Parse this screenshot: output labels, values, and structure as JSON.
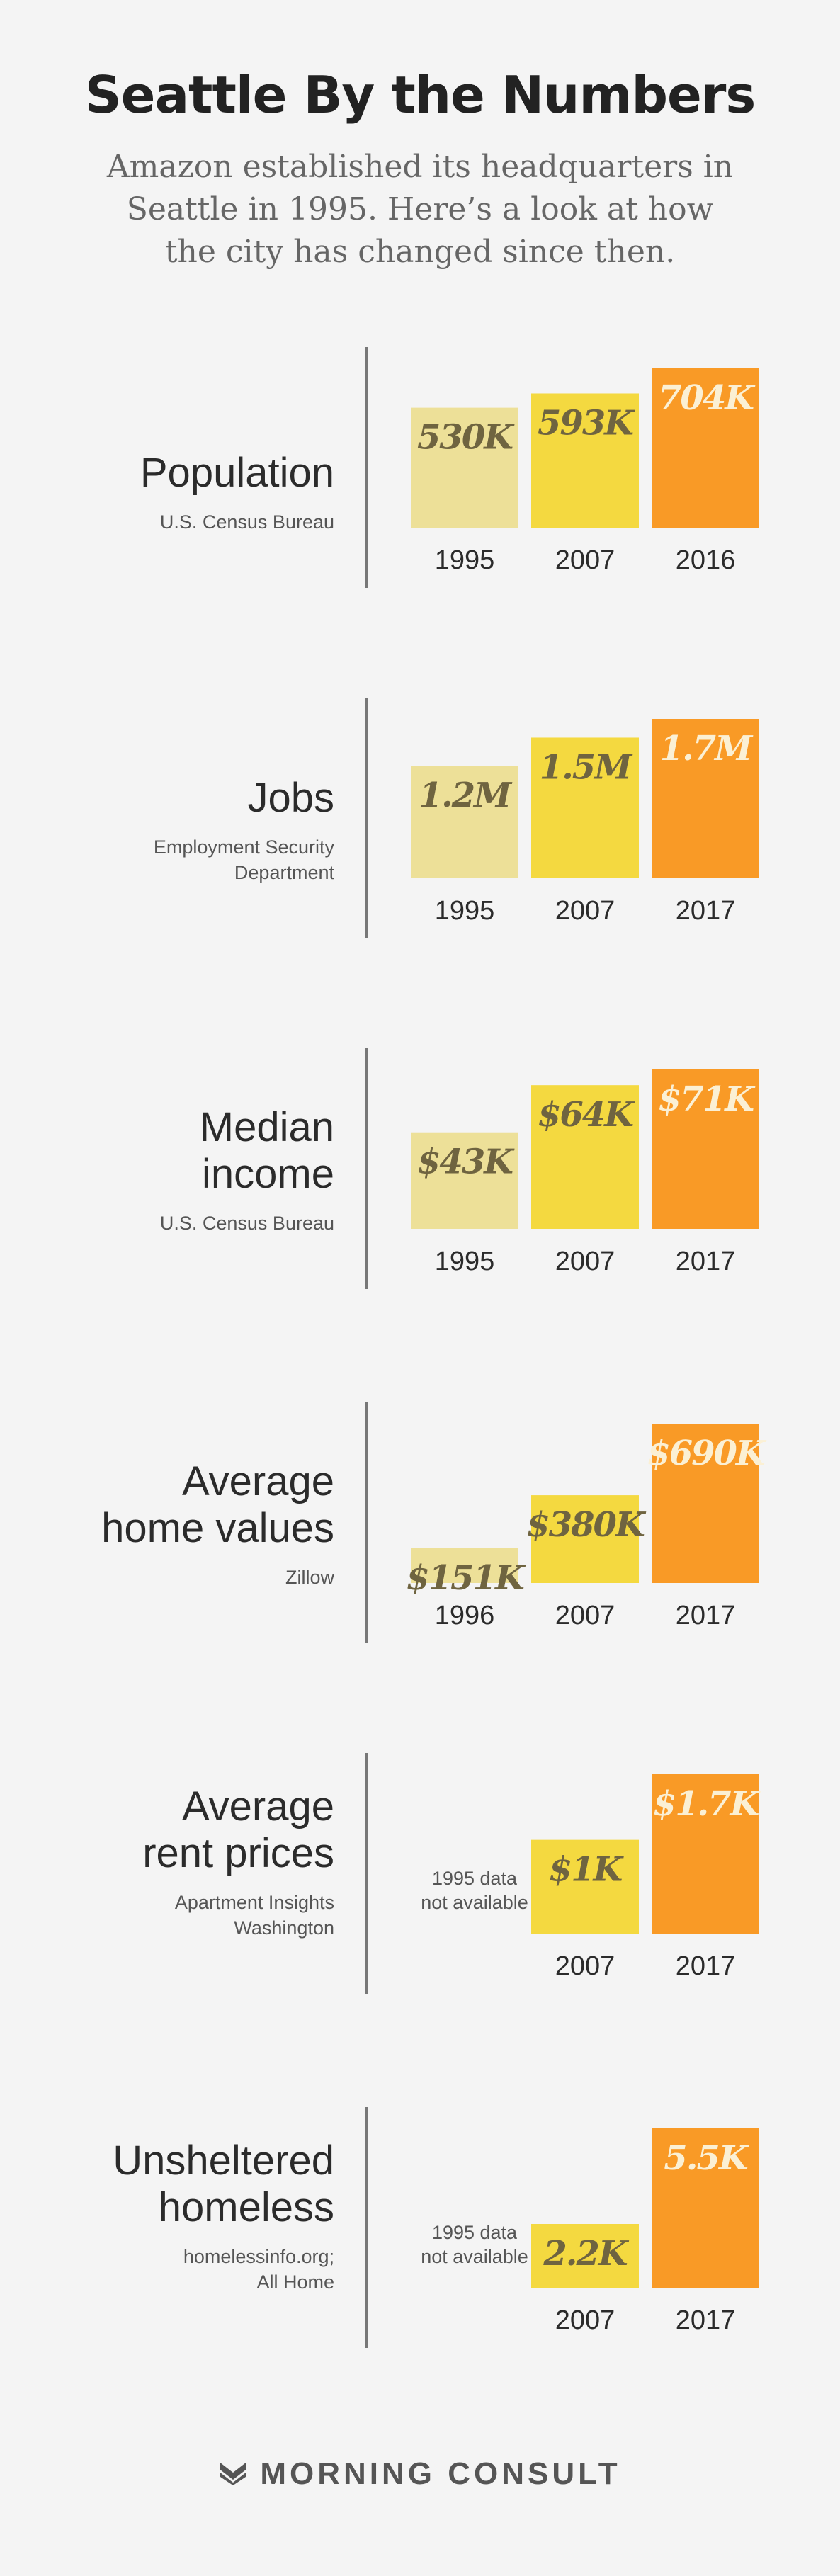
{
  "title": "Seattle By the Numbers",
  "subtitle": "Amazon established its headquarters in Seattle in 1995. Here’s a look at how the city has changed since then.",
  "footer": {
    "brand": "MORNING CONSULT",
    "logo_icon": "morning-consult-logo-icon"
  },
  "colors": {
    "c1": "#ede098",
    "c2": "#f4d940",
    "c3": "#f99a26",
    "text_dark": "#6f6440",
    "text_light": "#fbf0d4"
  },
  "chart_data": [
    {
      "type": "bar",
      "label": "Population",
      "source": "U.S. Census Bureau",
      "categories": [
        "1995",
        "2007",
        "2016"
      ],
      "values": [
        530000,
        593000,
        704000
      ],
      "value_labels": [
        "530K",
        "593K",
        "704K"
      ],
      "note": ""
    },
    {
      "type": "bar",
      "label": "Jobs",
      "source": "Employment Security Department",
      "categories": [
        "1995",
        "2007",
        "2017"
      ],
      "values": [
        1200000,
        1500000,
        1700000
      ],
      "value_labels": [
        "1.2M",
        "1.5M",
        "1.7M"
      ],
      "note": ""
    },
    {
      "type": "bar",
      "label": "Median income",
      "source": "U.S. Census Bureau",
      "categories": [
        "1995",
        "2007",
        "2017"
      ],
      "values": [
        43000,
        64000,
        71000
      ],
      "value_labels": [
        "$43K",
        "$64K",
        "$71K"
      ],
      "note": ""
    },
    {
      "type": "bar",
      "label": "Average home values",
      "source": "Zillow",
      "categories": [
        "1996",
        "2007",
        "2017"
      ],
      "values": [
        151000,
        380000,
        690000
      ],
      "value_labels": [
        "$151K",
        "$380K",
        "$690K"
      ],
      "note": ""
    },
    {
      "type": "bar",
      "label": "Average rent prices",
      "source": "Apartment Insights Washington",
      "categories": [
        "",
        "2007",
        "2017"
      ],
      "values": [
        null,
        1000,
        1700
      ],
      "value_labels": [
        "",
        "$1K",
        "$1.7K"
      ],
      "note": "1995 data not available"
    },
    {
      "type": "bar",
      "label": "Unsheltered homeless",
      "source": "homelessinfo.org; All Home",
      "categories": [
        "",
        "2007",
        "2017"
      ],
      "values": [
        null,
        2200,
        5500
      ],
      "value_labels": [
        "",
        "2.2K",
        "5.5K"
      ],
      "note": "1995 data not available"
    }
  ]
}
